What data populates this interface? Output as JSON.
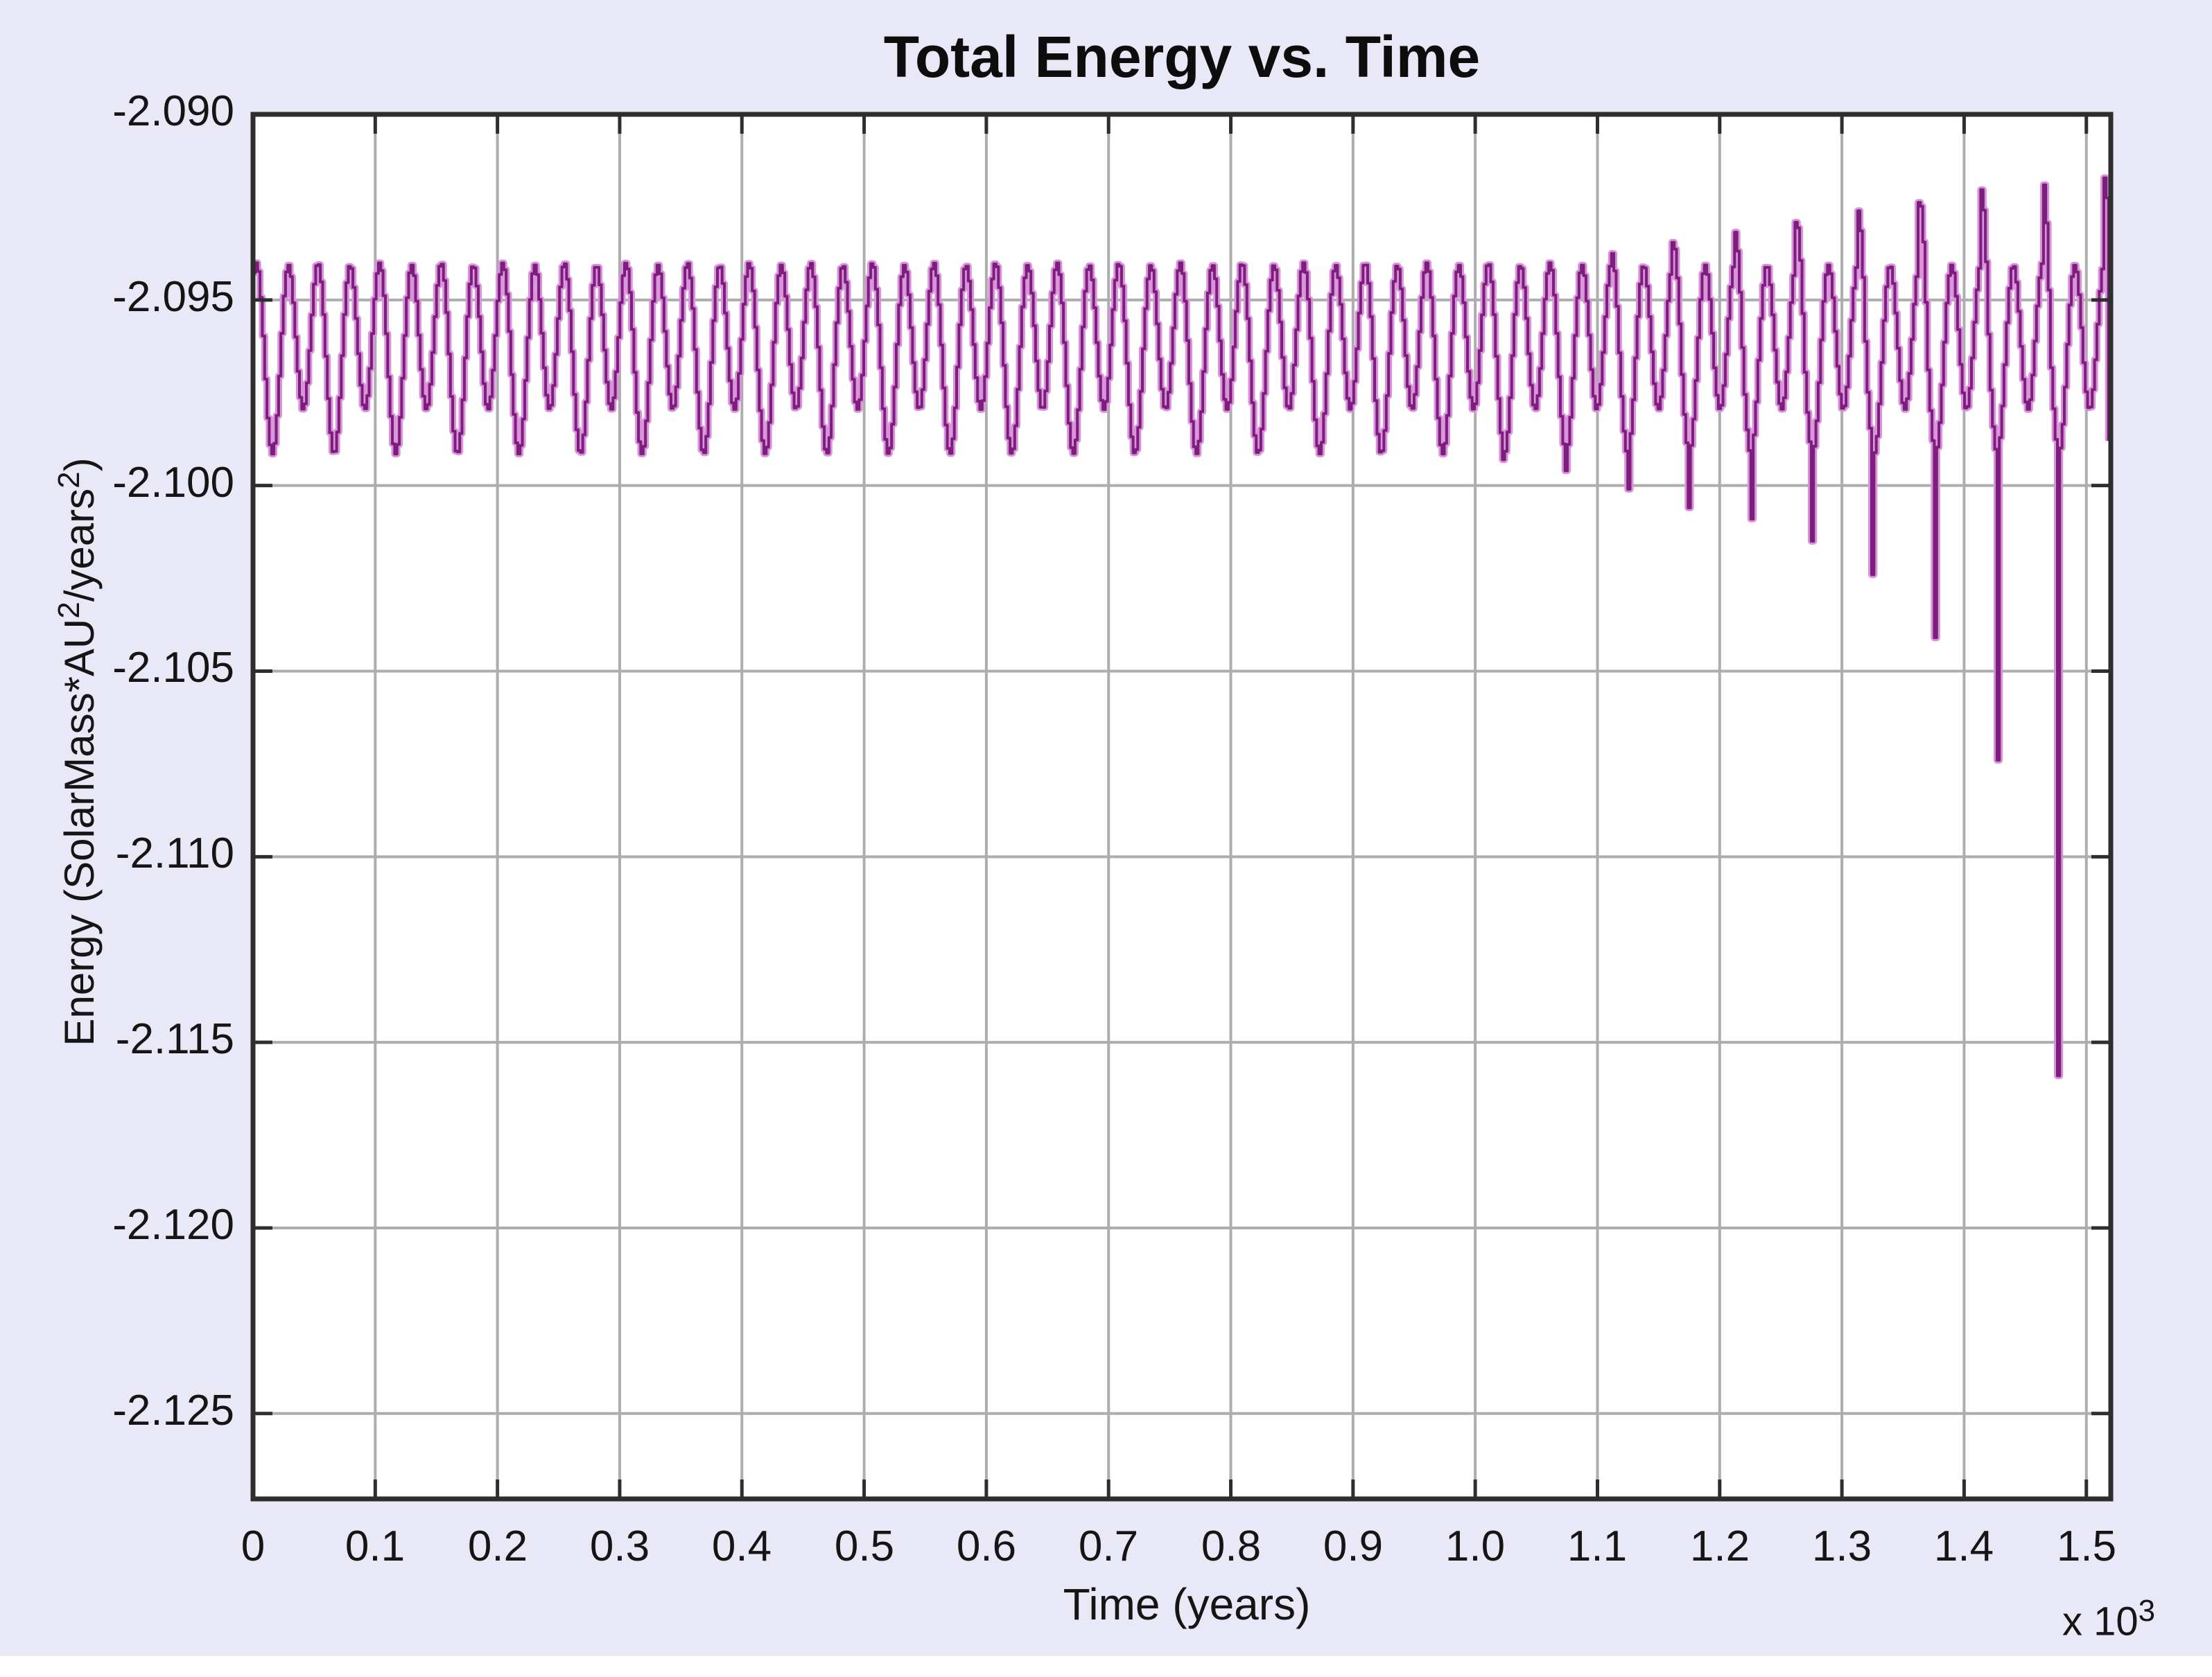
{
  "figure": {
    "background_color": "#E8E8F6",
    "plot_background_color": "#FFFFFF",
    "grid_color": "#ADADAD",
    "frame_color": "#2E2E2E",
    "text_color": "#151515"
  },
  "chart_data": {
    "type": "line",
    "title": "Total Energy vs. Time",
    "xlabel": "Time (years)",
    "ylabel": "Energy (SolarMass*AU^2/years^2)",
    "ylabel_parts": [
      {
        "text": "Energy (SolarMass*AU",
        "sup": false
      },
      {
        "text": "2",
        "sup": true
      },
      {
        "text": "/years",
        "sup": false
      },
      {
        "text": "2",
        "sup": true
      },
      {
        "text": ")",
        "sup": false
      }
    ],
    "x_scale_label": {
      "prefix": "x 10",
      "exponent": "3"
    },
    "xlim": [
      0,
      1520
    ],
    "ylim": [
      -2.1273,
      -2.09
    ],
    "grid": true,
    "legend": null,
    "xticks": [
      {
        "v": 0,
        "label": "0"
      },
      {
        "v": 100,
        "label": "0.1"
      },
      {
        "v": 200,
        "label": "0.2"
      },
      {
        "v": 300,
        "label": "0.3"
      },
      {
        "v": 400,
        "label": "0.4"
      },
      {
        "v": 500,
        "label": "0.5"
      },
      {
        "v": 600,
        "label": "0.6"
      },
      {
        "v": 700,
        "label": "0.7"
      },
      {
        "v": 800,
        "label": "0.8"
      },
      {
        "v": 900,
        "label": "0.9"
      },
      {
        "v": 1000,
        "label": "1.0"
      },
      {
        "v": 1100,
        "label": "1.1"
      },
      {
        "v": 1200,
        "label": "1.2"
      },
      {
        "v": 1300,
        "label": "1.3"
      },
      {
        "v": 1400,
        "label": "1.4"
      },
      {
        "v": 1500,
        "label": "1.5"
      }
    ],
    "yticks": [
      {
        "v": -2.09,
        "label": "-2.090"
      },
      {
        "v": -2.095,
        "label": "-2.095"
      },
      {
        "v": -2.1,
        "label": "-2.100"
      },
      {
        "v": -2.105,
        "label": "-2.105"
      },
      {
        "v": -2.11,
        "label": "-2.110"
      },
      {
        "v": -2.115,
        "label": "-2.115"
      },
      {
        "v": -2.12,
        "label": "-2.120"
      },
      {
        "v": -2.125,
        "label": "-2.125"
      }
    ],
    "line_color_core": "#7C1E7C",
    "line_color_halo": "#DA93DA",
    "series_model": {
      "description": "Total mechanical energy of an n-body orbital simulation: quasi-periodic oscillation (fast period ~25.2 yr with alternating deep/medium minima every ~50.4 yr) around baseline -2.0963, oscillating roughly between -2.0938 and -2.0990; numerical instability after t~1100 yr produces tall pre-spike maxima and exponentially deepening narrow downward spikes every ~50 yr, deepest ~ -2.116 at t~1477.",
      "baseline": -2.0963,
      "fast": {
        "period": 25.2,
        "amplitude": 0.00225,
        "peak_t": 2.5
      },
      "slow": {
        "period": 50.4,
        "amplitude": 0.0006,
        "min_t": 15.5
      },
      "sample_step": 1.9,
      "peak_growth": {
        "start_t": 1060,
        "end_t": 1470,
        "max_boost": 0.0023,
        "window_before_dip": 14
      },
      "spikes": [
        {
          "t": 1023,
          "v": -2.0993
        },
        {
          "t": 1073,
          "v": -2.0996
        },
        {
          "t": 1124,
          "v": -2.1001
        },
        {
          "t": 1174,
          "v": -2.1006
        },
        {
          "t": 1225,
          "v": -2.1009
        },
        {
          "t": 1275,
          "v": -2.1015
        },
        {
          "t": 1325,
          "v": -2.1024
        },
        {
          "t": 1376,
          "v": -2.1041
        },
        {
          "t": 1426,
          "v": -2.1074
        },
        {
          "t": 1477,
          "v": -2.1159
        },
        {
          "t": 1519,
          "v": -2.0988
        }
      ],
      "approx_oscillation_high": -2.0938,
      "approx_oscillation_low_deep": -2.099,
      "approx_oscillation_low_medium": -2.0978,
      "tallest_peak": {
        "t": 1463,
        "v": -2.0917
      }
    }
  }
}
